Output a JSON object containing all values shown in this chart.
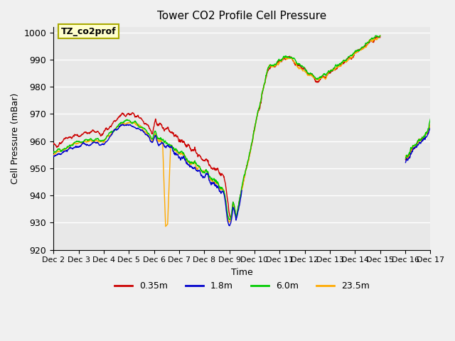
{
  "title": "Tower CO2 Profile Cell Pressure",
  "xlabel": "Time",
  "ylabel": "Cell Pressure (mBar)",
  "ylim": [
    920,
    1002
  ],
  "yticks": [
    920,
    930,
    940,
    950,
    960,
    970,
    980,
    990,
    1000
  ],
  "xlim": [
    0,
    15
  ],
  "xtick_labels": [
    "Dec 2",
    "Dec 3",
    "Dec 4",
    "Dec 5",
    "Dec 6",
    "Dec 7",
    "Dec 8",
    "Dec 9",
    "Dec 10",
    "Dec 11",
    "Dec 12",
    "Dec 13",
    "Dec 14",
    "Dec 15",
    "Dec 16",
    "Dec 17"
  ],
  "series_colors": [
    "#cc0000",
    "#0000cc",
    "#00cc00",
    "#ffaa00"
  ],
  "series_labels": [
    "0.35m",
    "1.8m",
    "6.0m",
    "23.5m"
  ],
  "legend_box_color": "#ffffcc",
  "legend_box_edge": "#aaaa00",
  "annotation_text": "TZ_co2prof",
  "bg_color": "#e8e8e8",
  "grid_color": "#ffffff"
}
